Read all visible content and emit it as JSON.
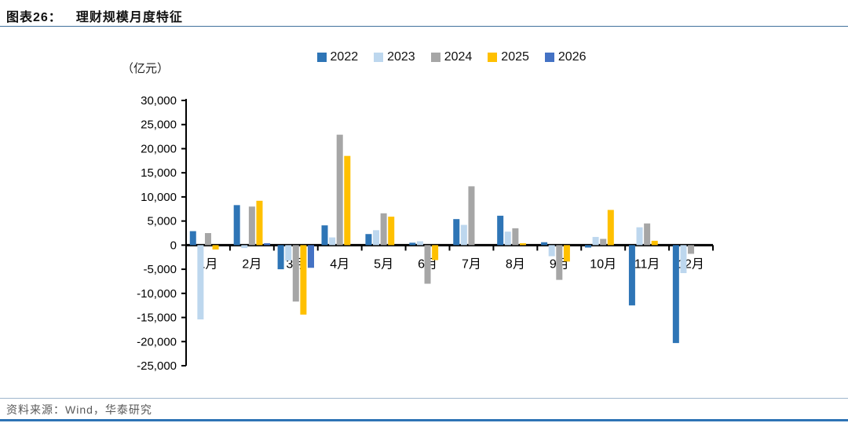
{
  "header": {
    "title_prefix": "图表26：",
    "title": "理财规模月度特征"
  },
  "footer": {
    "source": "资料来源：Wind，华泰研究"
  },
  "chart_data": {
    "type": "bar",
    "title": "理财规模月度特征",
    "unit_label": "（亿元）",
    "xlabel": "",
    "ylabel": "亿元",
    "grid": false,
    "legend_position": "top",
    "ylim": [
      -25000,
      30000
    ],
    "ytick_step": 5000,
    "yticks": [
      30000,
      25000,
      20000,
      15000,
      10000,
      5000,
      0,
      -5000,
      -10000,
      -15000,
      -20000,
      -25000
    ],
    "categories": [
      "1月",
      "2月",
      "3月",
      "4月",
      "5月",
      "6月",
      "7月",
      "8月",
      "9月",
      "10月",
      "11月",
      "12月"
    ],
    "series": [
      {
        "name": "2022",
        "color": "#2E75B6",
        "values": [
          2900,
          8300,
          -5000,
          4100,
          2300,
          500,
          5400,
          6100,
          600,
          -500,
          -12500,
          -20300
        ]
      },
      {
        "name": "2023",
        "color": "#BDD7EE",
        "values": [
          -15400,
          -600,
          -3200,
          1600,
          3100,
          800,
          4200,
          2800,
          -2300,
          1700,
          3700,
          -5800
        ]
      },
      {
        "name": "2024",
        "color": "#A6A6A6",
        "values": [
          2500,
          8000,
          -11700,
          22900,
          6600,
          -8000,
          12200,
          3500,
          -7200,
          1300,
          4500,
          -1800
        ]
      },
      {
        "name": "2025",
        "color": "#FFC000",
        "values": [
          -900,
          9200,
          -14400,
          18500,
          5900,
          -3100,
          null,
          400,
          -3400,
          7300,
          900,
          null
        ]
      },
      {
        "name": "2026",
        "color": "#4472C4",
        "values": [
          null,
          400,
          -4700,
          null,
          null,
          null,
          null,
          null,
          null,
          null,
          null,
          null
        ]
      }
    ]
  }
}
